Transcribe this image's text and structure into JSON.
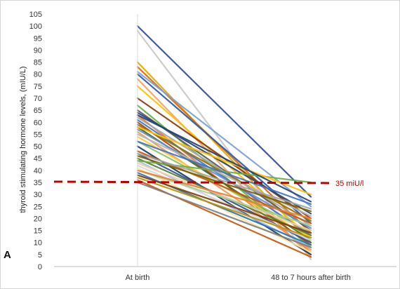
{
  "chart_data": {
    "type": "line",
    "title": "",
    "panel_label": "A",
    "ylabel": "thyroid stimulating hormone levels, (mIU/L)",
    "xlabel": "",
    "categories": [
      "At birth",
      "48 to 7 hours after birth"
    ],
    "ylim": [
      0,
      105
    ],
    "ytick_step": 5,
    "yticks": [
      "0",
      "5",
      "10",
      "15",
      "20",
      "25",
      "30",
      "35",
      "40",
      "45",
      "50",
      "55",
      "60",
      "65",
      "70",
      "75",
      "80",
      "85",
      "90",
      "95",
      "100",
      "105"
    ],
    "grid": false,
    "legend": "none",
    "reference_line": {
      "value": 35,
      "label": "35 miU/l",
      "color": "#c00000",
      "style": "dashed"
    },
    "series": [
      {
        "values": [
          100,
          29
        ],
        "color": "#2e4e9a"
      },
      {
        "values": [
          98,
          3
        ],
        "color": "#c8c8c8"
      },
      {
        "values": [
          85,
          10
        ],
        "color": "#e8a800"
      },
      {
        "values": [
          83,
          14
        ],
        "color": "#e06b00"
      },
      {
        "values": [
          81,
          25
        ],
        "color": "#7a9fd6"
      },
      {
        "values": [
          80,
          18
        ],
        "color": "#2d5aa8"
      },
      {
        "values": [
          78,
          4
        ],
        "color": "#f4a460"
      },
      {
        "values": [
          75,
          12
        ],
        "color": "#ffc000"
      },
      {
        "values": [
          70,
          20
        ],
        "color": "#8b3a0e"
      },
      {
        "values": [
          67,
          8
        ],
        "color": "#70ad47"
      },
      {
        "values": [
          65,
          15
        ],
        "color": "#5b5b5b"
      },
      {
        "values": [
          64,
          22
        ],
        "color": "#264478"
      },
      {
        "values": [
          63,
          6
        ],
        "color": "#ed7d31"
      },
      {
        "values": [
          62,
          17
        ],
        "color": "#a5a5a5"
      },
      {
        "values": [
          61,
          13
        ],
        "color": "#4472c4"
      },
      {
        "values": [
          60,
          9
        ],
        "color": "#9e480e"
      },
      {
        "values": [
          59,
          19
        ],
        "color": "#997300"
      },
      {
        "values": [
          58,
          11
        ],
        "color": "#43682b"
      },
      {
        "values": [
          57,
          16
        ],
        "color": "#698ed0"
      },
      {
        "values": [
          56,
          7
        ],
        "color": "#f1975a"
      },
      {
        "values": [
          55,
          21
        ],
        "color": "#b7b7b7"
      },
      {
        "values": [
          54,
          12
        ],
        "color": "#ffcd33"
      },
      {
        "values": [
          52,
          14
        ],
        "color": "#8cc168"
      },
      {
        "values": [
          50,
          5
        ],
        "color": "#1f3864"
      },
      {
        "values": [
          48,
          18
        ],
        "color": "#c55a11"
      },
      {
        "values": [
          47,
          10
        ],
        "color": "#2f5597"
      },
      {
        "values": [
          46,
          23
        ],
        "color": "#7f6000"
      },
      {
        "values": [
          45,
          13
        ],
        "color": "#548235"
      },
      {
        "values": [
          44,
          8
        ],
        "color": "#9dc3e6"
      },
      {
        "values": [
          43,
          15
        ],
        "color": "#f8cbad"
      },
      {
        "values": [
          42,
          11
        ],
        "color": "#d9d9d9"
      },
      {
        "values": [
          41,
          6
        ],
        "color": "#ffe699"
      },
      {
        "values": [
          40,
          17
        ],
        "color": "#a9d18e"
      },
      {
        "values": [
          39,
          9
        ],
        "color": "#2e75b6"
      },
      {
        "values": [
          38,
          14
        ],
        "color": "#843c0c"
      },
      {
        "values": [
          37,
          12
        ],
        "color": "#bf9000"
      },
      {
        "values": [
          36,
          4
        ],
        "color": "#c55a11"
      },
      {
        "values": [
          35,
          8
        ],
        "color": "#7f7f7f"
      },
      {
        "values": [
          44,
          35
        ],
        "color": "#70ad47"
      },
      {
        "values": [
          58,
          30
        ],
        "color": "#ffc000"
      },
      {
        "values": [
          52,
          26
        ],
        "color": "#4472c4"
      },
      {
        "values": [
          47,
          24
        ],
        "color": "#a5a5a5"
      },
      {
        "values": [
          63,
          27
        ],
        "color": "#264478"
      },
      {
        "values": [
          40,
          20
        ],
        "color": "#ed7d31"
      }
    ]
  }
}
